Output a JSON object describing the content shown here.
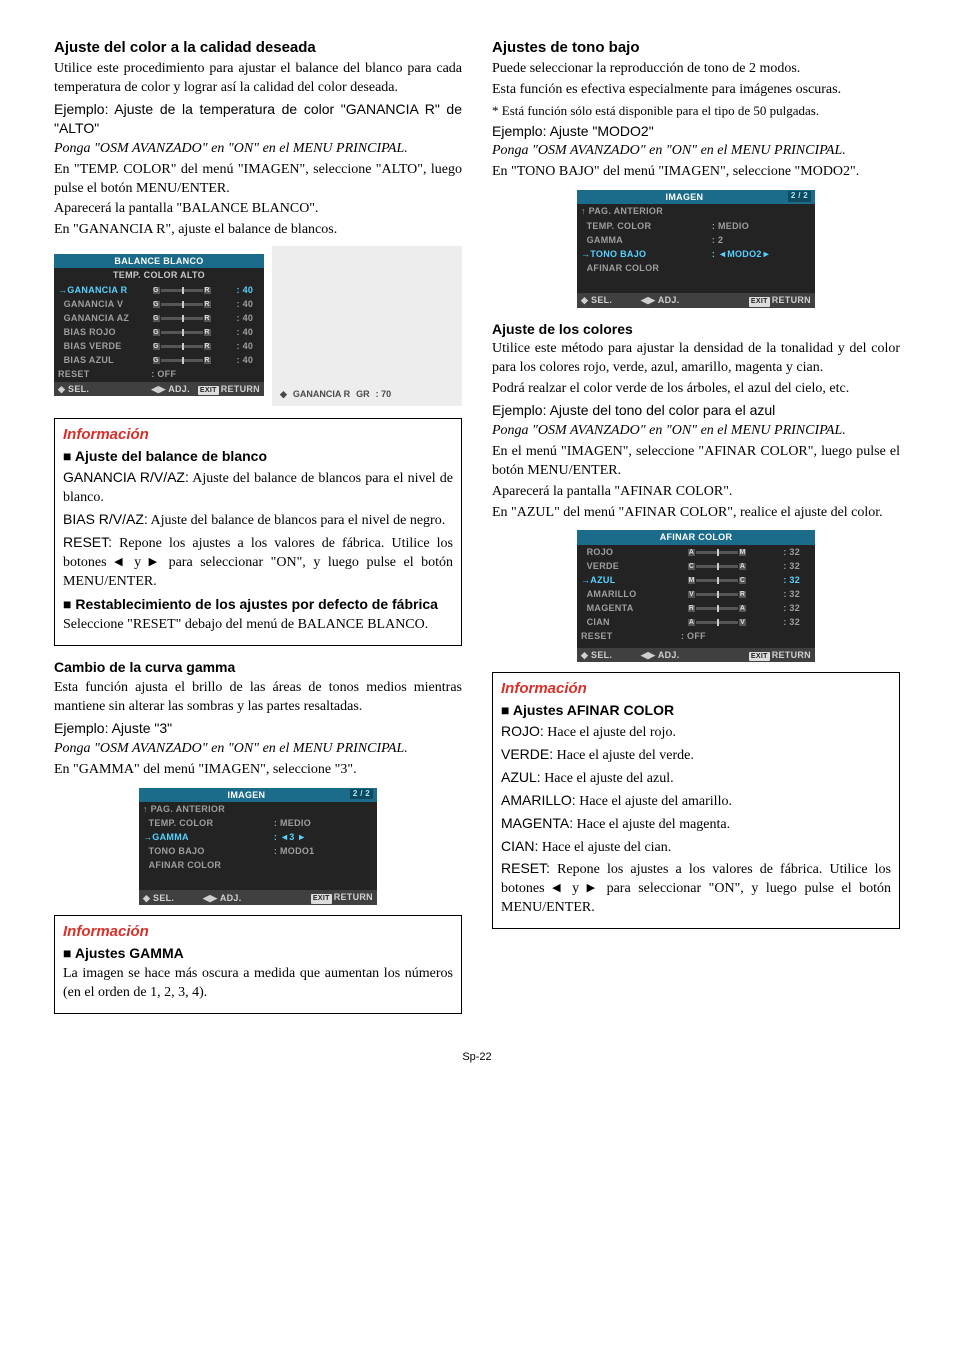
{
  "page_number": "Sp-22",
  "left": {
    "h_color": "Ajuste del color a la calidad deseada",
    "p1": "Utilice este procedimiento para ajustar el balance del blanco para cada temperatura de color y lograr así la calidad del color deseada.",
    "ej1": "Ejemplo: Ajuste de la temperatura de color \"GANANCIA R\" de \"ALTO\"",
    "ponga": "Ponga \"OSM AVANZADO\" en \"ON\" en el MENU PRINCIPAL.",
    "p2": "En \"TEMP. COLOR\" del menú \"IMAGEN\", seleccione \"ALTO\", luego pulse el botón MENU/ENTER.",
    "p3": "Aparecerá la pantalla \"BALANCE BLANCO\".",
    "p4": "En \"GANANCIA R\", ajuste el balance de blancos.",
    "balance_osd": {
      "title": "BALANCE BLANCO",
      "subtitle": "TEMP. COLOR ALTO",
      "rows": [
        {
          "label": "GANANCIA R",
          "cap_l": "G",
          "cap_r": "R",
          "val": ": 40",
          "hl": true
        },
        {
          "label": "GANANCIA V",
          "cap_l": "G",
          "cap_r": "R",
          "val": ": 40"
        },
        {
          "label": "GANANCIA AZ",
          "cap_l": "G",
          "cap_r": "R",
          "val": ": 40"
        },
        {
          "label": "BIAS ROJO",
          "cap_l": "G",
          "cap_r": "R",
          "val": ": 40"
        },
        {
          "label": "BIAS VERDE",
          "cap_l": "G",
          "cap_r": "R",
          "val": ": 40"
        },
        {
          "label": "BIAS AZUL",
          "cap_l": "G",
          "cap_r": "R",
          "val": ": 40"
        }
      ],
      "reset": "RESET",
      "reset_val": ":   OFF",
      "ftr_sel": "SEL.",
      "ftr_adj": "ADJ.",
      "ftr_ret": "RETURN",
      "side_label": "GANANCIA R",
      "side_cap_l": "G",
      "side_cap_r": "R",
      "side_val": ": 70"
    },
    "info1_title": "Información",
    "info1_sub1": "Ajuste del balance de blanco",
    "info1_p1a": "GANANCIA R/V/AZ:",
    "info1_p1b": " Ajuste del balance de blancos para el nivel de blanco.",
    "info1_p2a": "BIAS R/V/AZ:",
    "info1_p2b": " Ajuste del balance de blancos para el nivel de negro.",
    "info1_p3a": "RESET:",
    "info1_p3b": " Repone los ajustes a los valores de fábrica. Utilice los botones ",
    "info1_p3c": " y ",
    "info1_p3d": " para seleccionar \"ON\", y luego pulse el botón MENU/ENTER.",
    "info1_sub2": "Restablecimiento de los ajustes por defecto de fábrica",
    "info1_p4": "Seleccione \"RESET\" debajo del menú de BALANCE BLANCO.",
    "h_gamma": "Cambio de la curva gamma",
    "gamma_p1": "Esta función ajusta el brillo de las áreas de tonos medios mientras mantiene sin alterar las sombras y las partes resaltadas.",
    "gamma_ej": "Ejemplo:  Ajuste \"3\"",
    "gamma_p2": "En \"GAMMA\" del menú \"IMAGEN\", seleccione \"3\".",
    "gamma_osd": {
      "title": "IMAGEN",
      "page": "2 / 2",
      "rows": [
        {
          "label": "PAG. ANTERIOR",
          "val": ""
        },
        {
          "label": "TEMP. COLOR",
          "val": ":   MEDIO"
        },
        {
          "label": "GAMMA",
          "val": ": ◄3 ►",
          "hl": true
        },
        {
          "label": "TONO BAJO",
          "val": ":   MODO1"
        },
        {
          "label": "AFINAR COLOR",
          "val": ""
        }
      ],
      "ftr_sel": "SEL.",
      "ftr_adj": "ADJ.",
      "ftr_ret": "RETURN"
    },
    "info2_title": "Información",
    "info2_sub": "Ajustes GAMMA",
    "info2_p": "La imagen se hace más oscura a medida que aumentan los números (en el orden de 1, 2, 3, 4)."
  },
  "right": {
    "h_tono": "Ajustes de tono bajo",
    "t_p1": "Puede seleccionar la reproducción de tono de 2 modos.",
    "t_p2": "Esta función es efectiva especialmente para imágenes oscuras.",
    "t_note": "* Está función sólo está disponible para el tipo de 50 pulgadas.",
    "t_ej": "Ejemplo: Ajuste \"MODO2\"",
    "ponga": "Ponga \"OSM AVANZADO\" en \"ON\" en el MENU PRINCIPAL.",
    "t_p3": "En \"TONO BAJO\" del menú \"IMAGEN\", seleccione \"MODO2\".",
    "tono_osd": {
      "title": "IMAGEN",
      "page": "2 / 2",
      "rows": [
        {
          "label": "PAG. ANTERIOR",
          "val": ""
        },
        {
          "label": "TEMP. COLOR",
          "val": ":   MEDIO"
        },
        {
          "label": "GAMMA",
          "val": ":   2"
        },
        {
          "label": "TONO BAJO",
          "val": ": ◄MODO2►",
          "hl": true
        },
        {
          "label": "AFINAR COLOR",
          "val": ""
        }
      ],
      "ftr_sel": "SEL.",
      "ftr_adj": "ADJ.",
      "ftr_ret": "RETURN"
    },
    "h_color": "Ajuste de los colores",
    "c_p1": "Utilice este método para ajustar la densidad de la tonalidad y del color para los colores rojo, verde, azul, amarillo, magenta y cian.",
    "c_p2": "Podrá realzar el color verde de los árboles, el azul del cielo, etc.",
    "c_ej": "Ejemplo: Ajuste del tono del color para el azul",
    "c_p3": "En el menú \"IMAGEN\", seleccione \"AFINAR COLOR\", luego pulse el botón MENU/ENTER.",
    "c_p4": "Aparecerá la pantalla \"AFINAR COLOR\".",
    "c_p5": "En \"AZUL\" del menú \"AFINAR COLOR\", realice el ajuste del color.",
    "afinar_osd": {
      "title": "AFINAR COLOR",
      "rows": [
        {
          "label": "ROJO",
          "cap_l": "A",
          "cap_r": "M",
          "val": ": 32"
        },
        {
          "label": "VERDE",
          "cap_l": "C",
          "cap_r": "A",
          "val": ": 32"
        },
        {
          "label": "AZUL",
          "cap_l": "M",
          "cap_r": "C",
          "val": ": 32",
          "hl": true
        },
        {
          "label": "AMARILLO",
          "cap_l": "V",
          "cap_r": "R",
          "val": ": 32"
        },
        {
          "label": "MAGENTA",
          "cap_l": "R",
          "cap_r": "A",
          "val": ": 32"
        },
        {
          "label": "CIAN",
          "cap_l": "A",
          "cap_r": "V",
          "val": ": 32"
        }
      ],
      "reset": "RESET",
      "reset_val": ":   OFF",
      "ftr_sel": "SEL.",
      "ftr_adj": "ADJ.",
      "ftr_ret": "RETURN"
    },
    "info_title": "Información",
    "info_sub": "Ajustes AFINAR COLOR",
    "defs": [
      {
        "t": "ROJO:",
        "d": " Hace el ajuste del rojo."
      },
      {
        "t": "VERDE:",
        "d": " Hace el ajuste del verde."
      },
      {
        "t": "AZUL:",
        "d": " Hace el ajuste del azul."
      },
      {
        "t": "AMARILLO:",
        "d": " Hace el ajuste del amarillo."
      },
      {
        "t": "MAGENTA:",
        "d": " Hace el ajuste del magenta."
      },
      {
        "t": "CIAN:",
        "d": " Hace el ajuste del cian."
      }
    ],
    "reset_a": "RESET:",
    "reset_b": " Repone los ajustes a los valores de fábrica. Utilice los botones ",
    "reset_c": " y ",
    "reset_d": " para seleccionar \"ON\", y luego pulse el botón MENU/ENTER."
  }
}
